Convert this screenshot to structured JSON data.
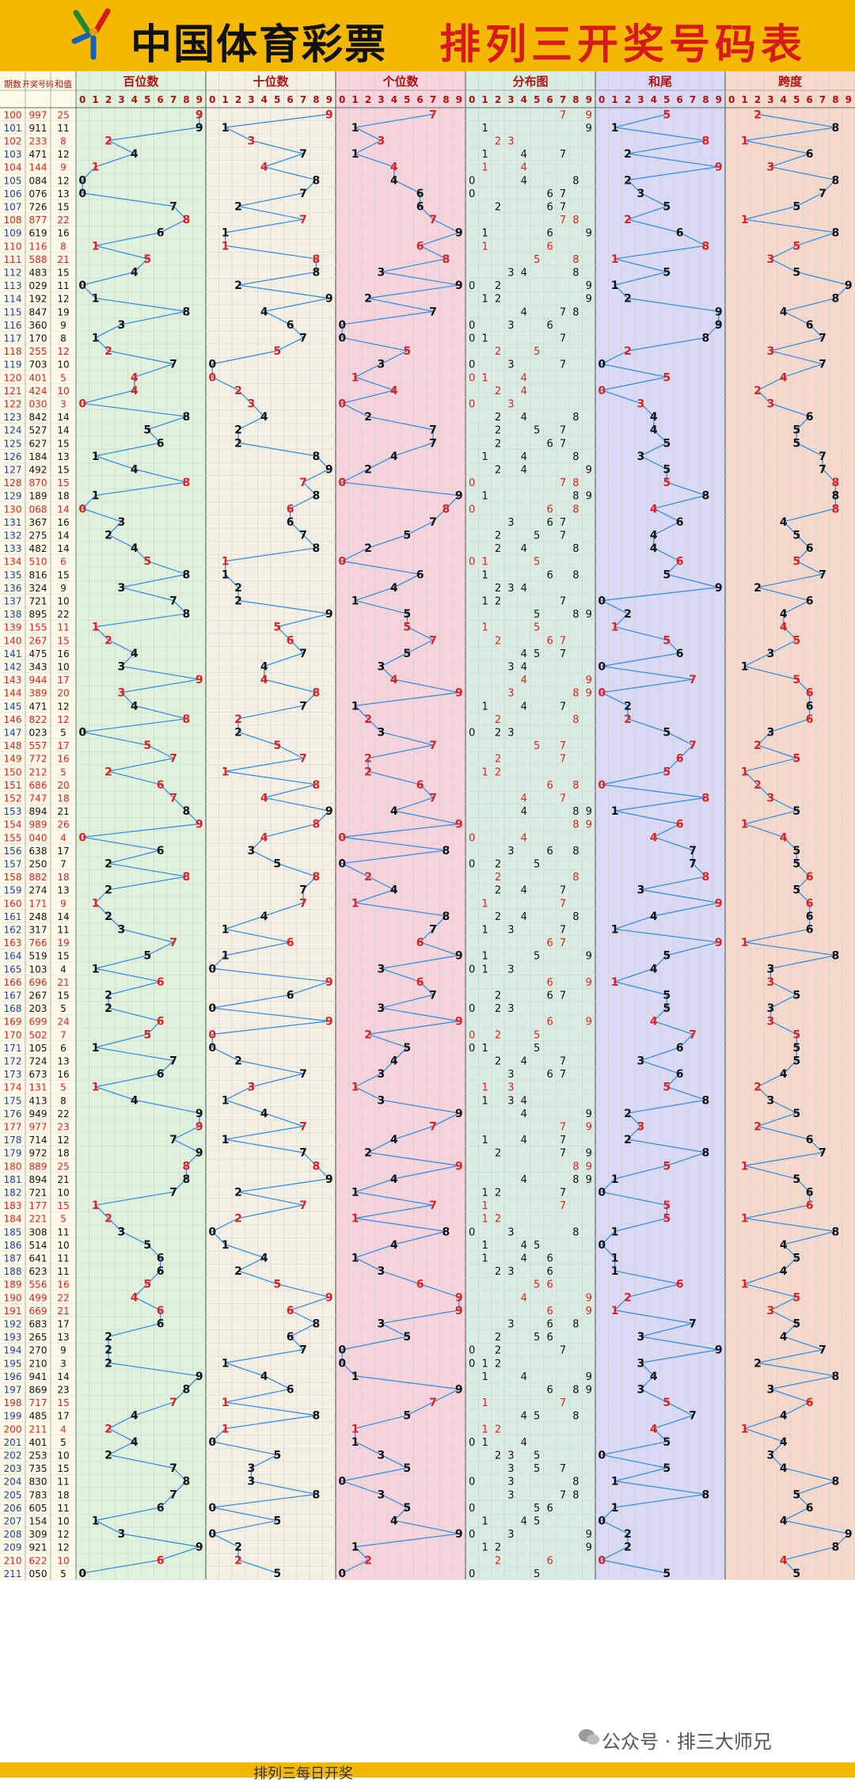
{
  "header": {
    "lottery_name": "中国体育彩票",
    "title": "排列三开奖号码表"
  },
  "footer": {
    "watermark": "公众号 · 排三大师兄",
    "bottom_text": "排列三每日开奖"
  },
  "colors": {
    "header_bg": "#f5b800",
    "panel_hundreds": "#dff3dc",
    "panel_tens": "#f4f1e4",
    "panel_ones": "#f7d3dc",
    "panel_distribution": "#d9ece0",
    "panel_sum_tail": "#d8d9f5",
    "panel_span": "#f7d9cc",
    "line": "#3a8ee6",
    "highlight_red": "#e02020",
    "text_black": "#111111"
  },
  "chart_data": {
    "type": "table",
    "columns": {
      "period": "期数",
      "number": "开奖号码",
      "sum": "和值"
    },
    "panels": [
      {
        "key": "hundreds",
        "title": "百位数"
      },
      {
        "key": "tens",
        "title": "十位数"
      },
      {
        "key": "ones",
        "title": "个位数"
      },
      {
        "key": "distribution",
        "title": "分布图"
      },
      {
        "key": "sum_tail",
        "title": "和尾"
      },
      {
        "key": "span",
        "title": "跨度"
      }
    ],
    "digits": [
      "0",
      "1",
      "2",
      "3",
      "4",
      "5",
      "6",
      "7",
      "8",
      "9"
    ],
    "red_periods": [
      100,
      102,
      104,
      108,
      110,
      111,
      118,
      120,
      121,
      122,
      128,
      130,
      134,
      139,
      140,
      143,
      144,
      146,
      148,
      149,
      150,
      151,
      152,
      154,
      155,
      158,
      160,
      163,
      166,
      169,
      170,
      174,
      177,
      180,
      183,
      184,
      189,
      190,
      191,
      198,
      200,
      210
    ],
    "draws": [
      [
        "100",
        "997"
      ],
      [
        "101",
        "911"
      ],
      [
        "102",
        "233"
      ],
      [
        "103",
        "471"
      ],
      [
        "104",
        "144"
      ],
      [
        "105",
        "084"
      ],
      [
        "106",
        "076"
      ],
      [
        "107",
        "726"
      ],
      [
        "108",
        "877"
      ],
      [
        "109",
        "619"
      ],
      [
        "110",
        "116"
      ],
      [
        "111",
        "588"
      ],
      [
        "112",
        "483"
      ],
      [
        "113",
        "029"
      ],
      [
        "114",
        "192"
      ],
      [
        "115",
        "847"
      ],
      [
        "116",
        "360"
      ],
      [
        "117",
        "170"
      ],
      [
        "118",
        "255"
      ],
      [
        "119",
        "703"
      ],
      [
        "120",
        "401"
      ],
      [
        "121",
        "424"
      ],
      [
        "122",
        "030"
      ],
      [
        "123",
        "842"
      ],
      [
        "124",
        "527"
      ],
      [
        "125",
        "627"
      ],
      [
        "126",
        "184"
      ],
      [
        "127",
        "492"
      ],
      [
        "128",
        "870"
      ],
      [
        "129",
        "189"
      ],
      [
        "130",
        "068"
      ],
      [
        "131",
        "367"
      ],
      [
        "132",
        "275"
      ],
      [
        "133",
        "482"
      ],
      [
        "134",
        "510"
      ],
      [
        "135",
        "816"
      ],
      [
        "136",
        "324"
      ],
      [
        "137",
        "721"
      ],
      [
        "138",
        "895"
      ],
      [
        "139",
        "155"
      ],
      [
        "140",
        "267"
      ],
      [
        "141",
        "475"
      ],
      [
        "142",
        "343"
      ],
      [
        "143",
        "944"
      ],
      [
        "144",
        "389"
      ],
      [
        "145",
        "471"
      ],
      [
        "146",
        "822"
      ],
      [
        "147",
        "023"
      ],
      [
        "148",
        "557"
      ],
      [
        "149",
        "772"
      ],
      [
        "150",
        "212"
      ],
      [
        "151",
        "686"
      ],
      [
        "152",
        "747"
      ],
      [
        "153",
        "894"
      ],
      [
        "154",
        "989"
      ],
      [
        "155",
        "040"
      ],
      [
        "156",
        "638"
      ],
      [
        "157",
        "250"
      ],
      [
        "158",
        "882"
      ],
      [
        "159",
        "274"
      ],
      [
        "160",
        "171"
      ],
      [
        "161",
        "248"
      ],
      [
        "162",
        "317"
      ],
      [
        "163",
        "766"
      ],
      [
        "164",
        "519"
      ],
      [
        "165",
        "103"
      ],
      [
        "166",
        "696"
      ],
      [
        "167",
        "267"
      ],
      [
        "168",
        "203"
      ],
      [
        "169",
        "699"
      ],
      [
        "170",
        "502"
      ],
      [
        "171",
        "105"
      ],
      [
        "172",
        "724"
      ],
      [
        "173",
        "673"
      ],
      [
        "174",
        "131"
      ],
      [
        "175",
        "413"
      ],
      [
        "176",
        "949"
      ],
      [
        "177",
        "977"
      ],
      [
        "178",
        "714"
      ],
      [
        "179",
        "972"
      ],
      [
        "180",
        "889"
      ],
      [
        "181",
        "894"
      ],
      [
        "182",
        "721"
      ],
      [
        "183",
        "177"
      ],
      [
        "184",
        "221"
      ],
      [
        "185",
        "308"
      ],
      [
        "186",
        "514"
      ],
      [
        "187",
        "641"
      ],
      [
        "188",
        "623"
      ],
      [
        "189",
        "556"
      ],
      [
        "190",
        "499"
      ],
      [
        "191",
        "669"
      ],
      [
        "192",
        "683"
      ],
      [
        "193",
        "265"
      ],
      [
        "194",
        "270"
      ],
      [
        "195",
        "210"
      ],
      [
        "196",
        "941"
      ],
      [
        "197",
        "869"
      ],
      [
        "198",
        "717"
      ],
      [
        "199",
        "485"
      ],
      [
        "200",
        "211"
      ],
      [
        "201",
        "401"
      ],
      [
        "202",
        "253"
      ],
      [
        "203",
        "735"
      ],
      [
        "204",
        "830"
      ],
      [
        "205",
        "783"
      ],
      [
        "206",
        "605"
      ],
      [
        "207",
        "154"
      ],
      [
        "208",
        "309"
      ],
      [
        "209",
        "921"
      ],
      [
        "210",
        "622"
      ],
      [
        "211",
        "050"
      ]
    ]
  }
}
